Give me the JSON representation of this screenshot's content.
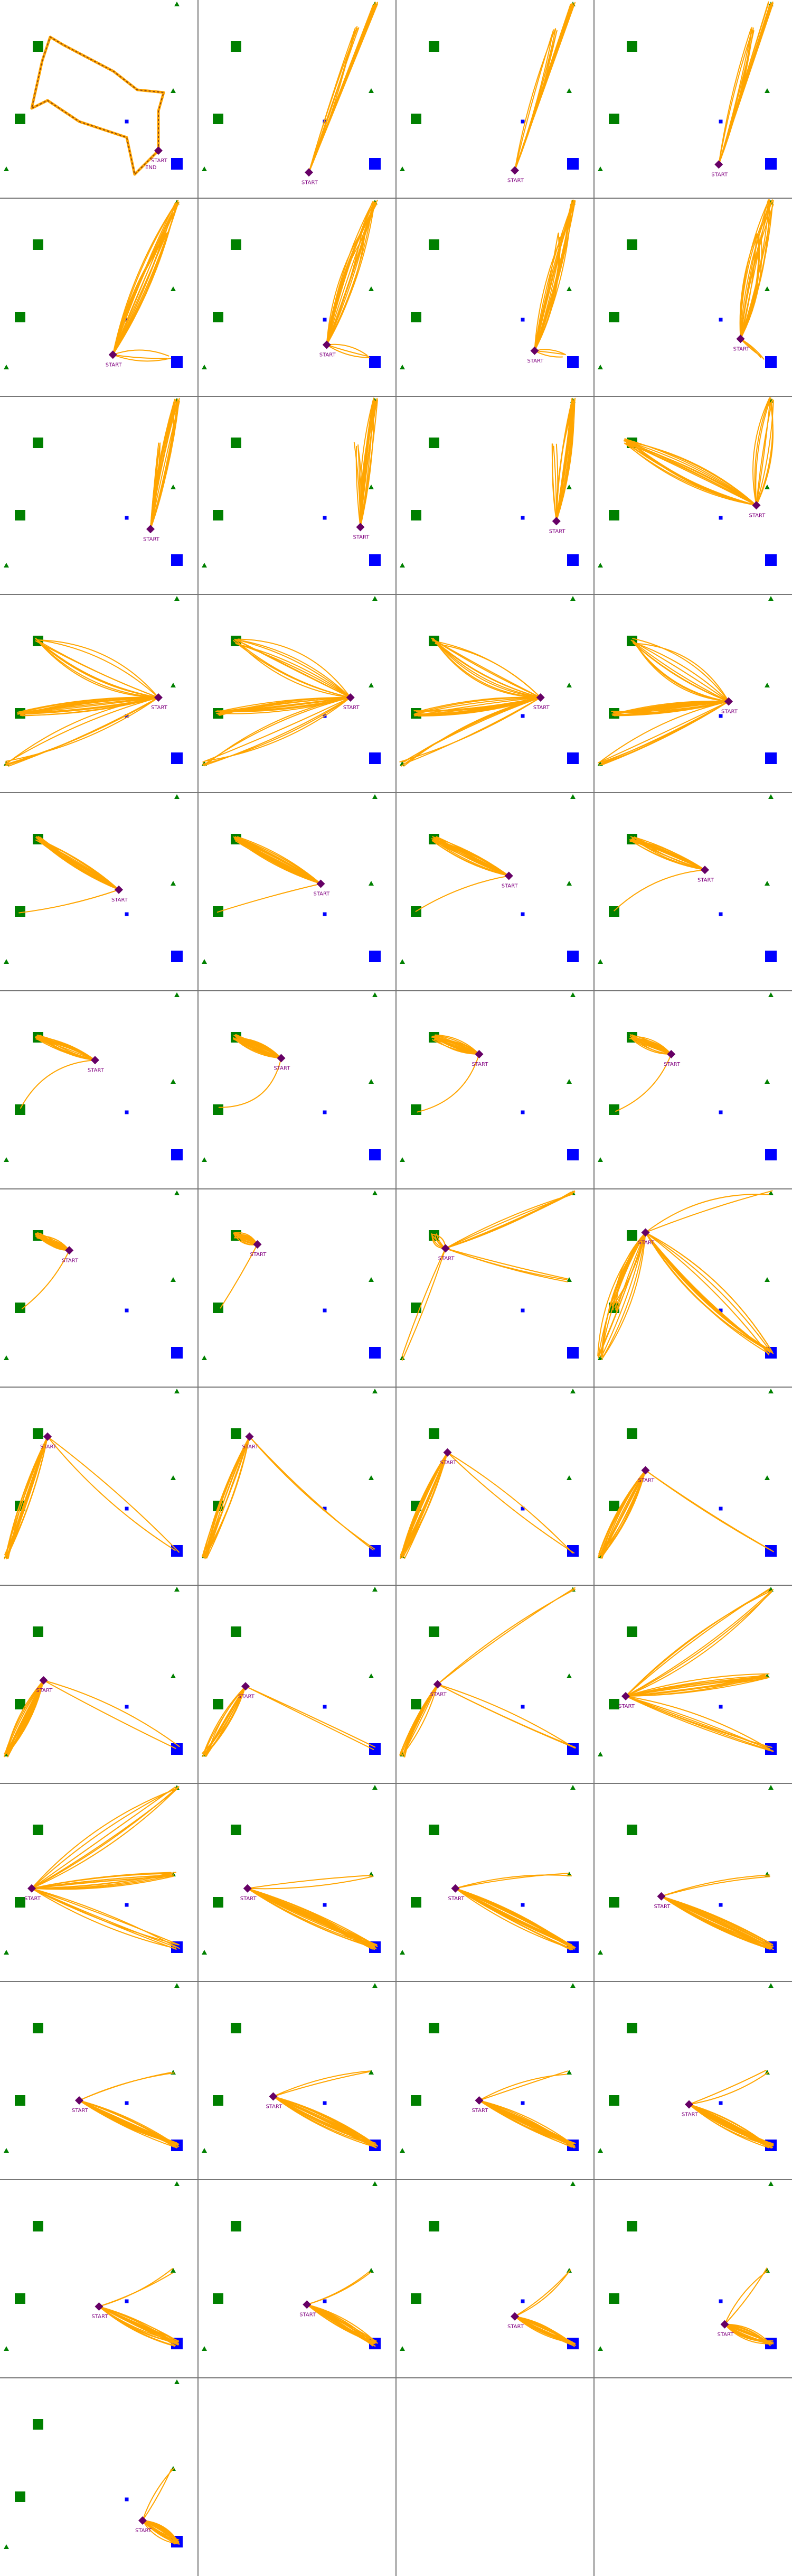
{
  "layout": {
    "columns": 4,
    "rows": 13,
    "panel_count": 49
  },
  "colors": {
    "trajectory": "#FFA500",
    "trajectory_edge": "#C87800",
    "start_marker": "#660066",
    "start_label": "#800080",
    "green_square": "#008000",
    "green_triangle": "#008000",
    "blue_square": "#0000FF",
    "divider": "#777777",
    "dashed_path": "#8B4513"
  },
  "start_label": "START",
  "end_label": "END",
  "panels": [
    {
      "id": 1,
      "start": [
        0.8,
        0.76
      ],
      "style": "dashed",
      "end_label": true
    },
    {
      "id": 2,
      "start": [
        0.56,
        0.87
      ],
      "paths": "up-right-thin"
    },
    {
      "id": 3,
      "start": [
        0.6,
        0.86
      ],
      "paths": "up-right-thin"
    },
    {
      "id": 4,
      "start": [
        0.63,
        0.83
      ],
      "paths": "up-right-thin"
    },
    {
      "id": 5,
      "start": [
        0.57,
        0.79
      ],
      "paths": "up-right-wide"
    },
    {
      "id": 6,
      "start": [
        0.65,
        0.74
      ],
      "paths": "up-right-wide"
    },
    {
      "id": 7,
      "start": [
        0.7,
        0.77
      ],
      "paths": "up-right-wide"
    },
    {
      "id": 8,
      "start": [
        0.74,
        0.71
      ],
      "paths": "up-right-wide"
    },
    {
      "id": 9,
      "start": [
        0.76,
        0.67
      ],
      "paths": "up-right-tight"
    },
    {
      "id": 10,
      "start": [
        0.82,
        0.66
      ],
      "paths": "up-right-tight"
    },
    {
      "id": 11,
      "start": [
        0.81,
        0.63
      ],
      "paths": "up-right-tight"
    },
    {
      "id": 12,
      "start": [
        0.82,
        0.55
      ],
      "paths": "up-right-wide-left"
    },
    {
      "id": 13,
      "start": [
        0.8,
        0.52
      ],
      "paths": "fan-left"
    },
    {
      "id": 14,
      "start": [
        0.77,
        0.52
      ],
      "paths": "fan-left"
    },
    {
      "id": 15,
      "start": [
        0.73,
        0.52
      ],
      "paths": "fan-left"
    },
    {
      "id": 16,
      "start": [
        0.68,
        0.54
      ],
      "paths": "fan-left"
    },
    {
      "id": 17,
      "start": [
        0.6,
        0.49
      ],
      "paths": "to-top-green"
    },
    {
      "id": 18,
      "start": [
        0.62,
        0.46
      ],
      "paths": "to-top-green"
    },
    {
      "id": 19,
      "start": [
        0.57,
        0.42
      ],
      "paths": "to-top-green"
    },
    {
      "id": 20,
      "start": [
        0.56,
        0.39
      ],
      "paths": "to-top-green"
    },
    {
      "id": 21,
      "start": [
        0.48,
        0.35
      ],
      "paths": "to-top-green"
    },
    {
      "id": 22,
      "start": [
        0.42,
        0.34
      ],
      "paths": "to-top-green"
    },
    {
      "id": 23,
      "start": [
        0.42,
        0.32
      ],
      "paths": "to-top-green"
    },
    {
      "id": 24,
      "start": [
        0.39,
        0.32
      ],
      "paths": "to-top-green"
    },
    {
      "id": 25,
      "start": [
        0.35,
        0.31
      ],
      "paths": "to-top-green"
    },
    {
      "id": 26,
      "start": [
        0.3,
        0.28
      ],
      "paths": "to-top-green"
    },
    {
      "id": 27,
      "start": [
        0.25,
        0.3
      ],
      "paths": "to-top-green-right"
    },
    {
      "id": 28,
      "start": [
        0.26,
        0.22
      ],
      "paths": "fan-down"
    },
    {
      "id": 29,
      "start": [
        0.24,
        0.25
      ],
      "paths": "down-left"
    },
    {
      "id": 30,
      "start": [
        0.26,
        0.25
      ],
      "paths": "down-left"
    },
    {
      "id": 31,
      "start": [
        0.26,
        0.33
      ],
      "paths": "down-left"
    },
    {
      "id": 32,
      "start": [
        0.26,
        0.42
      ],
      "paths": "down-left"
    },
    {
      "id": 33,
      "start": [
        0.22,
        0.48
      ],
      "paths": "down-left"
    },
    {
      "id": 34,
      "start": [
        0.24,
        0.51
      ],
      "paths": "down-left"
    },
    {
      "id": 35,
      "start": [
        0.21,
        0.5
      ],
      "paths": "down-left-right"
    },
    {
      "id": 36,
      "start": [
        0.16,
        0.56
      ],
      "paths": "fan-right"
    },
    {
      "id": 37,
      "start": [
        0.16,
        0.53
      ],
      "paths": "fan-right"
    },
    {
      "id": 38,
      "start": [
        0.25,
        0.53
      ],
      "paths": "to-blue"
    },
    {
      "id": 39,
      "start": [
        0.3,
        0.53
      ],
      "paths": "to-blue"
    },
    {
      "id": 40,
      "start": [
        0.34,
        0.57
      ],
      "paths": "to-blue"
    },
    {
      "id": 41,
      "start": [
        0.4,
        0.6
      ],
      "paths": "to-blue"
    },
    {
      "id": 42,
      "start": [
        0.38,
        0.58
      ],
      "paths": "to-blue"
    },
    {
      "id": 43,
      "start": [
        0.42,
        0.6
      ],
      "paths": "to-blue"
    },
    {
      "id": 44,
      "start": [
        0.48,
        0.62
      ],
      "paths": "to-blue"
    },
    {
      "id": 45,
      "start": [
        0.5,
        0.64
      ],
      "paths": "to-blue"
    },
    {
      "id": 46,
      "start": [
        0.55,
        0.63
      ],
      "paths": "to-blue"
    },
    {
      "id": 47,
      "start": [
        0.6,
        0.69
      ],
      "paths": "to-blue"
    },
    {
      "id": 48,
      "start": [
        0.66,
        0.73
      ],
      "paths": "to-blue"
    },
    {
      "id": 49,
      "start": [
        0.72,
        0.72
      ],
      "paths": "to-blue"
    }
  ]
}
